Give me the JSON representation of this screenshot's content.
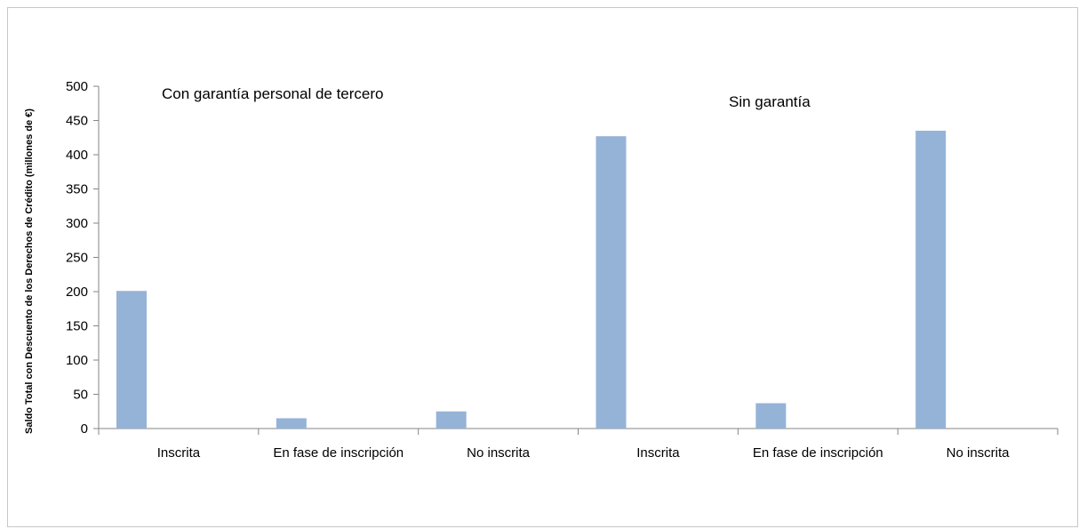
{
  "chart_data": {
    "type": "bar",
    "title": "",
    "ylabel": "Saldo Total con Descuento de los Derechos de Crédito (millones de €)",
    "xlabel": "",
    "ylim": [
      0,
      500
    ],
    "yticks": [
      0,
      50,
      100,
      150,
      200,
      250,
      300,
      350,
      400,
      450,
      500
    ],
    "grid": false,
    "bar_color": "#95b3d7",
    "groups": [
      {
        "title": "Con garantía personal de tercero",
        "categories": [
          "Inscrita",
          "En fase de inscripción",
          "No inscrita"
        ],
        "values": [
          201,
          15,
          25
        ]
      },
      {
        "title": "Sin garantía",
        "categories": [
          "Inscrita",
          "En fase de inscripción",
          "No inscrita"
        ],
        "values": [
          427,
          37,
          435
        ]
      }
    ]
  }
}
